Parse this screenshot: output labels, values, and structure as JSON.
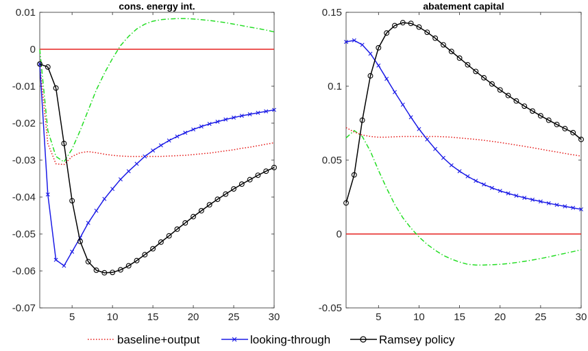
{
  "colors": {
    "zero_line": "#e6201e",
    "baseline_output": "#e6201e",
    "looking_through": "#1a1ae6",
    "ramsey": "#000000",
    "fourth_series": "#22dd22"
  },
  "legend": {
    "items": [
      {
        "label": "baseline+output",
        "color": "#e6201e",
        "style": "dotted",
        "marker": "none"
      },
      {
        "label": "looking-through",
        "color": "#1a1ae6",
        "style": "solid",
        "marker": "x"
      },
      {
        "label": "Ramsey policy",
        "color": "#000000",
        "style": "solid",
        "marker": "circle"
      }
    ]
  },
  "chart_data": [
    {
      "type": "line",
      "title": "cons. energy int.",
      "xlabel": "",
      "ylabel": "",
      "xlim": [
        1,
        30
      ],
      "ylim": [
        -0.07,
        0.01
      ],
      "xticks": [
        5,
        10,
        15,
        20,
        25,
        30
      ],
      "yticks": [
        0.01,
        0,
        -0.01,
        -0.02,
        -0.03,
        -0.04,
        -0.05,
        -0.06,
        -0.07
      ],
      "ytick_labels": [
        "0.01",
        "0",
        "-0.01",
        "-0.02",
        "-0.03",
        "-0.04",
        "-0.05",
        "-0.06",
        "-0.07"
      ],
      "grid": false,
      "x": [
        1,
        2,
        3,
        4,
        5,
        6,
        7,
        8,
        9,
        10,
        11,
        12,
        13,
        14,
        15,
        16,
        17,
        18,
        19,
        20,
        21,
        22,
        23,
        24,
        25,
        26,
        27,
        28,
        29,
        30
      ],
      "series": [
        {
          "key": "zero",
          "style": "solid",
          "marker": "none",
          "values": [
            0,
            0,
            0,
            0,
            0,
            0,
            0,
            0,
            0,
            0,
            0,
            0,
            0,
            0,
            0,
            0,
            0,
            0,
            0,
            0,
            0,
            0,
            0,
            0,
            0,
            0,
            0,
            0,
            0,
            0
          ]
        },
        {
          "key": "green",
          "style": "dashdot",
          "marker": "none",
          "values": [
            0,
            -0.022,
            -0.029,
            -0.0305,
            -0.027,
            -0.022,
            -0.0165,
            -0.011,
            -0.0065,
            -0.0025,
            0.001,
            0.0035,
            0.0055,
            0.0068,
            0.0076,
            0.008,
            0.0082,
            0.0083,
            0.0083,
            0.0082,
            0.008,
            0.0078,
            0.0075,
            0.0072,
            0.0068,
            0.0064,
            0.006,
            0.0056,
            0.0052,
            0.0047
          ]
        },
        {
          "key": "baseline_output",
          "name": "baseline+output",
          "style": "dotted",
          "marker": "none",
          "values": [
            -0.004,
            -0.0255,
            -0.031,
            -0.0312,
            -0.029,
            -0.028,
            -0.0277,
            -0.028,
            -0.0284,
            -0.0287,
            -0.0289,
            -0.029,
            -0.029,
            -0.029,
            -0.029,
            -0.029,
            -0.0289,
            -0.0288,
            -0.0287,
            -0.0285,
            -0.0283,
            -0.0281,
            -0.0278,
            -0.0275,
            -0.0272,
            -0.0268,
            -0.0265,
            -0.0261,
            -0.0257,
            -0.0253
          ]
        },
        {
          "key": "looking_through",
          "name": "looking-through",
          "style": "solid",
          "marker": "x",
          "values": [
            -0.004,
            -0.0393,
            -0.057,
            -0.0586,
            -0.0548,
            -0.051,
            -0.047,
            -0.0437,
            -0.0405,
            -0.0378,
            -0.0352,
            -0.033,
            -0.031,
            -0.029,
            -0.0274,
            -0.026,
            -0.0247,
            -0.0236,
            -0.0226,
            -0.0217,
            -0.0209,
            -0.0202,
            -0.0196,
            -0.019,
            -0.0185,
            -0.018,
            -0.0176,
            -0.0172,
            -0.0168,
            -0.0164
          ]
        },
        {
          "key": "ramsey",
          "name": "Ramsey policy",
          "style": "solid",
          "marker": "circle",
          "values": [
            -0.004,
            -0.0048,
            -0.0105,
            -0.0255,
            -0.041,
            -0.052,
            -0.0575,
            -0.0598,
            -0.0605,
            -0.0604,
            -0.0597,
            -0.0586,
            -0.0572,
            -0.0556,
            -0.054,
            -0.0522,
            -0.0505,
            -0.0487,
            -0.047,
            -0.0453,
            -0.0437,
            -0.0421,
            -0.0406,
            -0.0392,
            -0.0378,
            -0.0365,
            -0.0353,
            -0.0341,
            -0.033,
            -0.032
          ]
        }
      ]
    },
    {
      "type": "line",
      "title": "abatement capital",
      "xlabel": "",
      "ylabel": "",
      "xlim": [
        1,
        30
      ],
      "ylim": [
        -0.05,
        0.15
      ],
      "xticks": [
        5,
        10,
        15,
        20,
        25,
        30
      ],
      "yticks": [
        0.15,
        0.1,
        0.05,
        0,
        -0.05
      ],
      "ytick_labels": [
        "0.15",
        "0.1",
        "0.05",
        "0",
        "-0.05"
      ],
      "grid": false,
      "x": [
        1,
        2,
        3,
        4,
        5,
        6,
        7,
        8,
        9,
        10,
        11,
        12,
        13,
        14,
        15,
        16,
        17,
        18,
        19,
        20,
        21,
        22,
        23,
        24,
        25,
        26,
        27,
        28,
        29,
        30
      ],
      "series": [
        {
          "key": "zero",
          "style": "solid",
          "marker": "none",
          "values": [
            0,
            0,
            0,
            0,
            0,
            0,
            0,
            0,
            0,
            0,
            0,
            0,
            0,
            0,
            0,
            0,
            0,
            0,
            0,
            0,
            0,
            0,
            0,
            0,
            0,
            0,
            0,
            0,
            0,
            0
          ]
        },
        {
          "key": "green",
          "style": "dashdot",
          "marker": "none",
          "values": [
            0.065,
            0.07,
            0.066,
            0.056,
            0.043,
            0.031,
            0.02,
            0.011,
            0.004,
            -0.002,
            -0.007,
            -0.011,
            -0.0145,
            -0.017,
            -0.019,
            -0.0205,
            -0.021,
            -0.021,
            -0.0208,
            -0.0205,
            -0.02,
            -0.0193,
            -0.0185,
            -0.0176,
            -0.0166,
            -0.0155,
            -0.0143,
            -0.0131,
            -0.0119,
            -0.0107
          ]
        },
        {
          "key": "baseline_output",
          "name": "baseline+output",
          "style": "dotted",
          "marker": "none",
          "values": [
            0.072,
            0.069,
            0.067,
            0.066,
            0.0655,
            0.0655,
            0.0658,
            0.066,
            0.066,
            0.066,
            0.066,
            0.066,
            0.0658,
            0.0655,
            0.065,
            0.0645,
            0.064,
            0.0634,
            0.0627,
            0.0619,
            0.0611,
            0.0602,
            0.0593,
            0.0584,
            0.0574,
            0.0564,
            0.0555,
            0.0545,
            0.0536,
            0.0527
          ]
        },
        {
          "key": "looking_through",
          "name": "looking-through",
          "style": "solid",
          "marker": "x",
          "values": [
            0.13,
            0.131,
            0.128,
            0.122,
            0.114,
            0.105,
            0.096,
            0.0875,
            0.079,
            0.071,
            0.064,
            0.0575,
            0.0515,
            0.0465,
            0.0425,
            0.039,
            0.036,
            0.0335,
            0.0312,
            0.0292,
            0.0275,
            0.0259,
            0.0245,
            0.0232,
            0.022,
            0.0208,
            0.0197,
            0.0187,
            0.0177,
            0.0167
          ]
        },
        {
          "key": "ramsey",
          "name": "Ramsey policy",
          "style": "solid",
          "marker": "circle",
          "values": [
            0.021,
            0.04,
            0.077,
            0.107,
            0.126,
            0.136,
            0.141,
            0.143,
            0.1425,
            0.14,
            0.1365,
            0.1325,
            0.128,
            0.1235,
            0.119,
            0.1145,
            0.11,
            0.1057,
            0.1015,
            0.0975,
            0.0937,
            0.09,
            0.0865,
            0.0832,
            0.08,
            0.077,
            0.0741,
            0.0713,
            0.0686,
            0.064
          ]
        }
      ]
    }
  ]
}
